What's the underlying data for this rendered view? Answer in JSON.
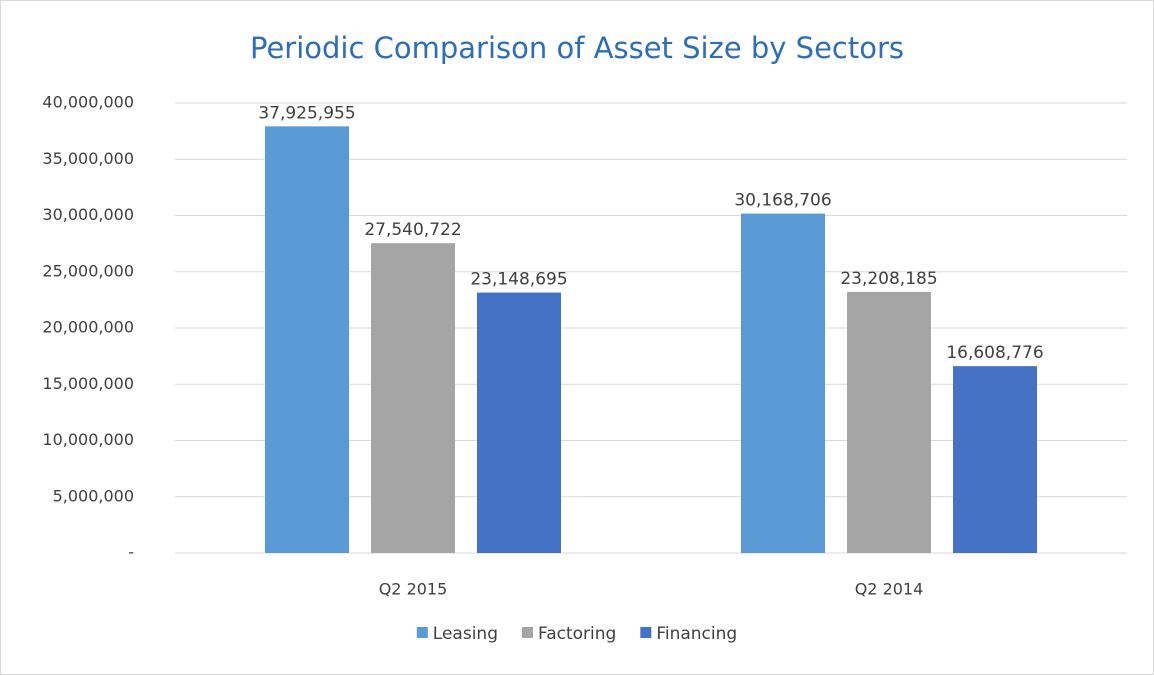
{
  "chart_data": {
    "type": "bar",
    "title": "Periodic Comparison of Asset Size by Sectors",
    "categories": [
      "Q2 2015",
      "Q2 2014"
    ],
    "series": [
      {
        "name": "Leasing",
        "color": "#5b9bd5",
        "values": [
          37925955,
          30168706
        ],
        "value_labels": [
          "37,925,955",
          "30,168,706"
        ]
      },
      {
        "name": "Factoring",
        "color": "#a5a5a5",
        "values": [
          27540722,
          23208185
        ],
        "value_labels": [
          "27,540,722",
          "23,208,185"
        ]
      },
      {
        "name": "Financing",
        "color": "#4472c4",
        "values": [
          23148695,
          16608776
        ],
        "value_labels": [
          "23,148,695",
          "16,608,776"
        ]
      }
    ],
    "ylim": [
      0,
      40000000
    ],
    "yticks": [
      {
        "value": 0,
        "label": "-"
      },
      {
        "value": 5000000,
        "label": "5,000,000"
      },
      {
        "value": 10000000,
        "label": "10,000,000"
      },
      {
        "value": 15000000,
        "label": "15,000,000"
      },
      {
        "value": 20000000,
        "label": "20,000,000"
      },
      {
        "value": 25000000,
        "label": "25,000,000"
      },
      {
        "value": 30000000,
        "label": "30,000,000"
      },
      {
        "value": 35000000,
        "label": "35,000,000"
      },
      {
        "value": 40000000,
        "label": "40,000,000"
      }
    ],
    "grid": true,
    "legend": "bottom"
  }
}
